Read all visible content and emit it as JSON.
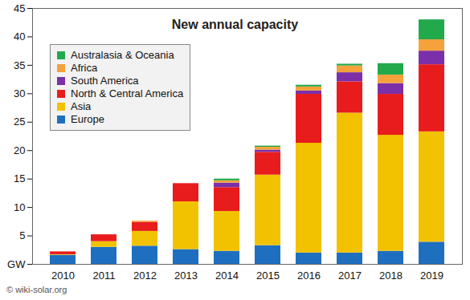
{
  "chart_data": {
    "type": "bar",
    "title": "New annual capacity",
    "caption": "© wiki-solar.org",
    "stacked": true,
    "grid": false,
    "legend": "top-left",
    "categories": [
      "2010",
      "2011",
      "2012",
      "2013",
      "2014",
      "2015",
      "2016",
      "2017",
      "2018",
      "2019"
    ],
    "series": [
      {
        "name": "Europe",
        "color": "#1f6fc0",
        "values": [
          1.6,
          3.0,
          3.2,
          2.6,
          2.3,
          3.3,
          2.0,
          2.0,
          2.3,
          3.9
        ]
      },
      {
        "name": "Asia",
        "color": "#f2c200",
        "values": [
          0.1,
          1.0,
          2.6,
          8.4,
          7.0,
          12.4,
          19.3,
          24.6,
          20.4,
          19.4
        ]
      },
      {
        "name": "North & Central America",
        "color": "#e81c1c",
        "values": [
          0.5,
          1.2,
          1.6,
          3.2,
          4.2,
          4.0,
          8.6,
          5.5,
          7.2,
          11.8
        ]
      },
      {
        "name": "South America",
        "color": "#7b2fa8",
        "values": [
          0,
          0,
          0,
          0,
          0.8,
          0.4,
          0.6,
          1.6,
          1.9,
          2.4
        ]
      },
      {
        "name": "Africa",
        "color": "#f5a23c",
        "values": [
          0,
          0,
          0.2,
          0,
          0.4,
          0.5,
          0.7,
          1.2,
          1.5,
          2.0
        ]
      },
      {
        "name": "Australasia & Oceania",
        "color": "#21a94b",
        "values": [
          0,
          0,
          0,
          0,
          0.3,
          0.2,
          0.3,
          0.3,
          2.0,
          3.5
        ]
      }
    ],
    "ylim": [
      0,
      45
    ],
    "yticks": [
      {
        "value": 0,
        "label": "GW"
      },
      5,
      10,
      15,
      20,
      25,
      30,
      35,
      40,
      45
    ]
  }
}
